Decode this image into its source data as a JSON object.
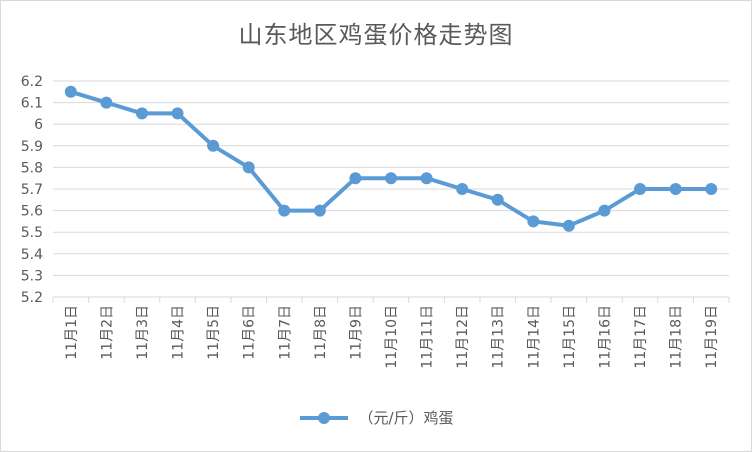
{
  "chart_data": {
    "type": "line",
    "title": "山东地区鸡蛋价格走势图",
    "categories": [
      "11月1日",
      "11月2日",
      "11月3日",
      "11月4日",
      "11月5日",
      "11月6日",
      "11月7日",
      "11月8日",
      "11月9日",
      "11月10日",
      "11月11日",
      "11月12日",
      "11月13日",
      "11月14日",
      "11月15日",
      "11月16日",
      "11月17日",
      "11月18日",
      "11月19日"
    ],
    "series": [
      {
        "name": "（元/斤）鸡蛋",
        "color": "#5b9bd5",
        "values": [
          6.15,
          6.1,
          6.05,
          6.05,
          5.9,
          5.8,
          5.6,
          5.6,
          5.75,
          5.75,
          5.75,
          5.7,
          5.65,
          5.55,
          5.53,
          5.6,
          5.7,
          5.7,
          5.7
        ]
      }
    ],
    "ylim": [
      5.2,
      6.2
    ],
    "yticks": [
      "5.2",
      "5.3",
      "5.4",
      "5.5",
      "5.6",
      "5.7",
      "5.8",
      "5.9",
      "6",
      "6.1",
      "6.2"
    ],
    "grid": true,
    "legend_position": "bottom",
    "xlabel": "",
    "ylabel": ""
  }
}
